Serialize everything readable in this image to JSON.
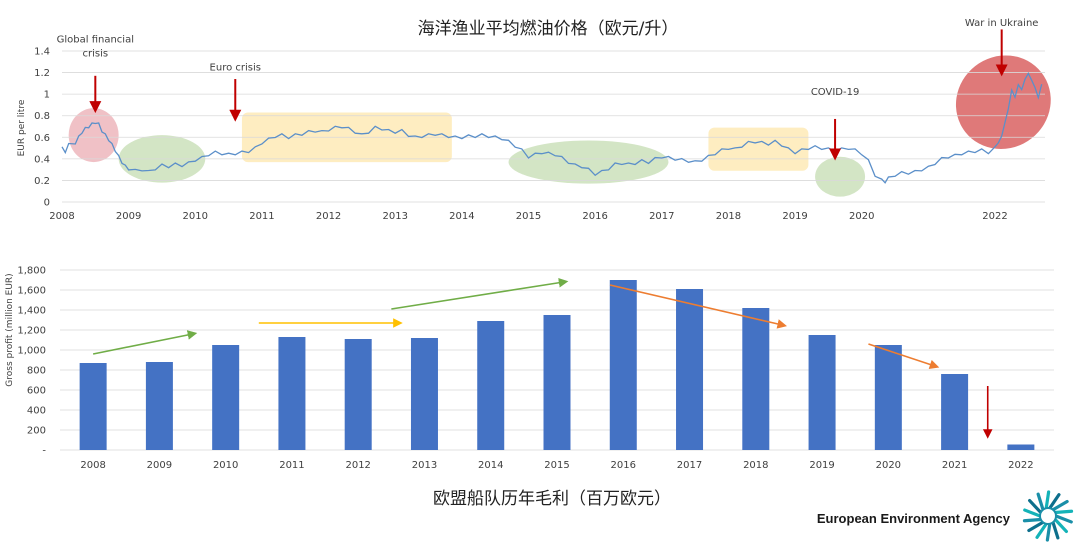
{
  "chart_data": [
    {
      "type": "line",
      "title": "海洋渔业平均燃油价格（欧元/升）",
      "xlabel": "",
      "ylabel": "EUR per litre",
      "ylim": [
        0,
        1.4
      ],
      "xlim": [
        2008,
        2022.75
      ],
      "yticks": [
        "0",
        "0.2",
        "0.4",
        "0.6",
        "0.8",
        "1",
        "1.2",
        "1.4"
      ],
      "xticks": [
        "2008",
        "2009",
        "2010",
        "2011",
        "2012",
        "2013",
        "2014",
        "2015",
        "2016",
        "2017",
        "2018",
        "2019",
        "2020",
        "2022"
      ],
      "grid": true,
      "line_color": "#5b8fc9",
      "series": [
        {
          "points": [
            [
              2008.0,
              0.5
            ],
            [
              2008.05,
              0.47
            ],
            [
              2008.1,
              0.53
            ],
            [
              2008.2,
              0.55
            ],
            [
              2008.25,
              0.6
            ],
            [
              2008.3,
              0.65
            ],
            [
              2008.35,
              0.68
            ],
            [
              2008.4,
              0.7
            ],
            [
              2008.45,
              0.72
            ],
            [
              2008.5,
              0.74
            ],
            [
              2008.55,
              0.72
            ],
            [
              2008.6,
              0.66
            ],
            [
              2008.65,
              0.62
            ],
            [
              2008.7,
              0.58
            ],
            [
              2008.75,
              0.53
            ],
            [
              2008.8,
              0.48
            ],
            [
              2008.85,
              0.42
            ],
            [
              2008.9,
              0.37
            ],
            [
              2008.95,
              0.33
            ],
            [
              2009.0,
              0.31
            ],
            [
              2009.1,
              0.29
            ],
            [
              2009.2,
              0.3
            ],
            [
              2009.3,
              0.28
            ],
            [
              2009.4,
              0.31
            ],
            [
              2009.5,
              0.34
            ],
            [
              2009.6,
              0.33
            ],
            [
              2009.7,
              0.35
            ],
            [
              2009.8,
              0.34
            ],
            [
              2009.9,
              0.36
            ],
            [
              2010.0,
              0.39
            ],
            [
              2010.1,
              0.41
            ],
            [
              2010.2,
              0.44
            ],
            [
              2010.3,
              0.46
            ],
            [
              2010.4,
              0.45
            ],
            [
              2010.5,
              0.44
            ],
            [
              2010.6,
              0.45
            ],
            [
              2010.7,
              0.46
            ],
            [
              2010.8,
              0.47
            ],
            [
              2010.9,
              0.5
            ],
            [
              2011.0,
              0.55
            ],
            [
              2011.1,
              0.58
            ],
            [
              2011.2,
              0.61
            ],
            [
              2011.3,
              0.62
            ],
            [
              2011.4,
              0.6
            ],
            [
              2011.5,
              0.62
            ],
            [
              2011.6,
              0.63
            ],
            [
              2011.7,
              0.65
            ],
            [
              2011.8,
              0.66
            ],
            [
              2011.9,
              0.65
            ],
            [
              2012.0,
              0.67
            ],
            [
              2012.1,
              0.69
            ],
            [
              2012.2,
              0.7
            ],
            [
              2012.3,
              0.68
            ],
            [
              2012.4,
              0.65
            ],
            [
              2012.5,
              0.62
            ],
            [
              2012.6,
              0.65
            ],
            [
              2012.7,
              0.69
            ],
            [
              2012.8,
              0.68
            ],
            [
              2012.9,
              0.66
            ],
            [
              2013.0,
              0.65
            ],
            [
              2013.1,
              0.66
            ],
            [
              2013.2,
              0.62
            ],
            [
              2013.3,
              0.6
            ],
            [
              2013.4,
              0.61
            ],
            [
              2013.5,
              0.62
            ],
            [
              2013.6,
              0.63
            ],
            [
              2013.7,
              0.62
            ],
            [
              2013.8,
              0.61
            ],
            [
              2013.9,
              0.6
            ],
            [
              2014.0,
              0.6
            ],
            [
              2014.1,
              0.61
            ],
            [
              2014.2,
              0.61
            ],
            [
              2014.3,
              0.62
            ],
            [
              2014.4,
              0.61
            ],
            [
              2014.5,
              0.6
            ],
            [
              2014.6,
              0.59
            ],
            [
              2014.7,
              0.56
            ],
            [
              2014.8,
              0.52
            ],
            [
              2014.9,
              0.48
            ],
            [
              2015.0,
              0.42
            ],
            [
              2015.1,
              0.44
            ],
            [
              2015.2,
              0.46
            ],
            [
              2015.3,
              0.45
            ],
            [
              2015.4,
              0.44
            ],
            [
              2015.5,
              0.41
            ],
            [
              2015.6,
              0.37
            ],
            [
              2015.7,
              0.34
            ],
            [
              2015.8,
              0.33
            ],
            [
              2015.9,
              0.3
            ],
            [
              2016.0,
              0.26
            ],
            [
              2016.1,
              0.28
            ],
            [
              2016.2,
              0.31
            ],
            [
              2016.3,
              0.35
            ],
            [
              2016.4,
              0.36
            ],
            [
              2016.5,
              0.35
            ],
            [
              2016.6,
              0.36
            ],
            [
              2016.7,
              0.38
            ],
            [
              2016.8,
              0.37
            ],
            [
              2016.9,
              0.4
            ],
            [
              2017.0,
              0.42
            ],
            [
              2017.1,
              0.41
            ],
            [
              2017.2,
              0.4
            ],
            [
              2017.3,
              0.39
            ],
            [
              2017.4,
              0.38
            ],
            [
              2017.5,
              0.37
            ],
            [
              2017.6,
              0.39
            ],
            [
              2017.7,
              0.42
            ],
            [
              2017.8,
              0.45
            ],
            [
              2017.9,
              0.48
            ],
            [
              2018.0,
              0.5
            ],
            [
              2018.1,
              0.49
            ],
            [
              2018.2,
              0.52
            ],
            [
              2018.3,
              0.55
            ],
            [
              2018.4,
              0.56
            ],
            [
              2018.5,
              0.55
            ],
            [
              2018.6,
              0.54
            ],
            [
              2018.7,
              0.56
            ],
            [
              2018.8,
              0.53
            ],
            [
              2018.9,
              0.49
            ],
            [
              2019.0,
              0.46
            ],
            [
              2019.1,
              0.48
            ],
            [
              2019.2,
              0.5
            ],
            [
              2019.3,
              0.51
            ],
            [
              2019.4,
              0.5
            ],
            [
              2019.5,
              0.49
            ],
            [
              2019.6,
              0.48
            ],
            [
              2019.7,
              0.49
            ],
            [
              2019.8,
              0.5
            ],
            [
              2019.9,
              0.48
            ],
            [
              2020.0,
              0.45
            ],
            [
              2020.1,
              0.38
            ],
            [
              2020.2,
              0.25
            ],
            [
              2020.3,
              0.2
            ],
            [
              2020.35,
              0.19
            ],
            [
              2020.4,
              0.22
            ],
            [
              2020.5,
              0.25
            ],
            [
              2020.6,
              0.27
            ],
            [
              2020.7,
              0.27
            ],
            [
              2020.8,
              0.28
            ],
            [
              2020.9,
              0.3
            ],
            [
              2021.0,
              0.32
            ],
            [
              2021.1,
              0.36
            ],
            [
              2021.2,
              0.4
            ],
            [
              2021.3,
              0.42
            ],
            [
              2021.4,
              0.43
            ],
            [
              2021.5,
              0.45
            ],
            [
              2021.6,
              0.46
            ],
            [
              2021.7,
              0.47
            ],
            [
              2021.8,
              0.48
            ],
            [
              2021.9,
              0.46
            ],
            [
              2022.0,
              0.5
            ],
            [
              2022.05,
              0.56
            ],
            [
              2022.1,
              0.6
            ],
            [
              2022.15,
              0.75
            ],
            [
              2022.2,
              0.85
            ],
            [
              2022.25,
              1.05
            ],
            [
              2022.3,
              0.96
            ],
            [
              2022.35,
              1.1
            ],
            [
              2022.4,
              1.03
            ],
            [
              2022.45,
              1.15
            ],
            [
              2022.5,
              1.18
            ],
            [
              2022.55,
              1.14
            ],
            [
              2022.6,
              1.05
            ],
            [
              2022.65,
              0.98
            ],
            [
              2022.7,
              1.08
            ]
          ]
        }
      ],
      "highlights": [
        {
          "x": [
            2008.1,
            2008.85
          ],
          "y": [
            0.37,
            0.87
          ],
          "kind": "ellipse",
          "color": "#e8a0a8"
        },
        {
          "x": [
            2008.85,
            2010.15
          ],
          "y": [
            0.18,
            0.62
          ],
          "kind": "ellipse",
          "color": "#bcd7a6"
        },
        {
          "x": [
            2010.7,
            2013.85
          ],
          "y": [
            0.37,
            0.83
          ],
          "kind": "rect",
          "color": "#fde3a0"
        },
        {
          "x": [
            2014.7,
            2017.1
          ],
          "y": [
            0.17,
            0.57
          ],
          "kind": "ellipse",
          "color": "#bcd7a6"
        },
        {
          "x": [
            2017.7,
            2019.2
          ],
          "y": [
            0.29,
            0.69
          ],
          "kind": "rect",
          "color": "#fde3a0"
        },
        {
          "x": [
            2019.3,
            2020.05
          ],
          "y": [
            0.05,
            0.42
          ],
          "kind": "ellipse",
          "color": "#bcd7a6"
        },
        {
          "x": [
            2021.4,
            2022.85
          ],
          "y": [
            0.5,
            1.35
          ],
          "kind": "ellipse",
          "color": "#d96161"
        }
      ],
      "annotations": [
        {
          "text": "Global financial",
          "x": 2008.5,
          "y": 1.48
        },
        {
          "text": "crisis",
          "x": 2008.5,
          "y": 1.35
        },
        {
          "text": "Euro crisis",
          "x": 2010.6,
          "y": 1.22
        },
        {
          "text": "COVID-19",
          "x": 2019.6,
          "y": 0.99
        },
        {
          "text": "War in Ukraine",
          "x": 2022.1,
          "y": 1.63
        }
      ],
      "arrows": [
        {
          "x": 2008.5,
          "y_from": 1.17,
          "y_to": 0.88,
          "color": "#c00000"
        },
        {
          "x": 2010.6,
          "y_from": 1.14,
          "y_to": 0.8,
          "color": "#c00000"
        },
        {
          "x": 2019.6,
          "y_from": 0.77,
          "y_to": 0.44,
          "color": "#c00000"
        },
        {
          "x": 2022.1,
          "y_from": 1.6,
          "y_to": 1.22,
          "color": "#c00000"
        }
      ]
    },
    {
      "type": "bar",
      "title": "欧盟船队历年毛利（百万欧元）",
      "xlabel": "",
      "ylabel": "Gross profit (million EUR)",
      "ylim": [
        0,
        1800
      ],
      "yticks": [
        "-",
        "200",
        "400",
        "600",
        "800",
        "1,000",
        "1,200",
        "1,400",
        "1,600",
        "1,800"
      ],
      "grid": true,
      "bar_color": "#4472c4",
      "categories": [
        "2008",
        "2009",
        "2010",
        "2011",
        "2012",
        "2013",
        "2014",
        "2015",
        "2016",
        "2017",
        "2018",
        "2019",
        "2020",
        "2021",
        "2022"
      ],
      "values": [
        870,
        880,
        1050,
        1130,
        1110,
        1120,
        1290,
        1350,
        1700,
        1610,
        1420,
        1150,
        1050,
        760,
        55
      ],
      "trend_arrows": [
        {
          "from": [
            0.5,
            960
          ],
          "to": [
            2.0,
            1160
          ],
          "color": "#70ad47"
        },
        {
          "from": [
            3.0,
            1270
          ],
          "to": [
            5.1,
            1270
          ],
          "color": "#ffc000"
        },
        {
          "from": [
            5.0,
            1410
          ],
          "to": [
            7.6,
            1680
          ],
          "color": "#70ad47"
        },
        {
          "from": [
            8.3,
            1650
          ],
          "to": [
            10.9,
            1250
          ],
          "color": "#ed7d31"
        },
        {
          "from": [
            12.2,
            1060
          ],
          "to": [
            13.2,
            840
          ],
          "color": "#ed7d31"
        },
        {
          "from": [
            14.0,
            640
          ],
          "to": [
            14.0,
            160
          ],
          "color": "#c00000"
        }
      ]
    }
  ],
  "footer": {
    "agency_name": "European Environment Agency",
    "logo_colors": [
      "#1a8fa8",
      "#14b3b8",
      "#0d6f8c"
    ]
  }
}
